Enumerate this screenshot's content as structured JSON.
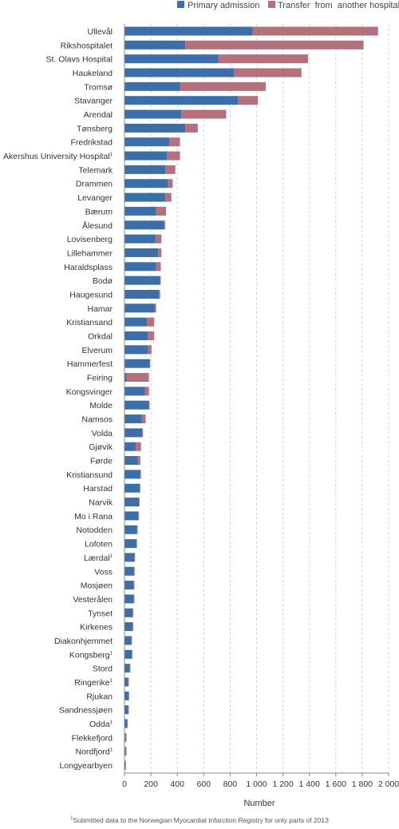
{
  "chart_data": {
    "type": "bar",
    "orientation": "horizontal",
    "stacked": true,
    "xlabel": "Number",
    "xlim": [
      0,
      2000
    ],
    "xticks": [
      0,
      200,
      400,
      600,
      800,
      1000,
      1200,
      1400,
      1600,
      1800,
      2000
    ],
    "xtick_labels": [
      "0",
      "200",
      "400",
      "600",
      "800",
      "1 000",
      "1 200",
      "1 400",
      "1 600",
      "1 800",
      "2 000"
    ],
    "grid": "vertical dashed",
    "legend_position": "top-right",
    "categories": [
      "Ullevål",
      "Rikshospitalet",
      "St. Olavs Hospital",
      "Haukeland",
      "Tromsø",
      "Stavanger",
      "Arendal",
      "Tønsberg",
      "Fredrikstad",
      "Akershus University Hospital",
      "Telemark",
      "Drammen",
      "Levanger",
      "Bærum",
      "Ålesund",
      "Lovisenberg",
      "Lillehammer",
      "Haraldsplass",
      "Bodø",
      "Haugesund",
      "Hamar",
      "Kristiansand",
      "Orkdal",
      "Elverum",
      "Hammerfest",
      "Feiring",
      "Kongsvinger",
      "Molde",
      "Namsos",
      "Volda",
      "Gjøvik",
      "Førde",
      "Kristiansund",
      "Harstad",
      "Narvik",
      "Mo i Rana",
      "Notodden",
      "Lofoten",
      "Lærdal",
      "Voss",
      "Mosjøen",
      "Vesterålen",
      "Tynset",
      "Kirkenes",
      "Diakonhjemmet",
      "Kongsberg",
      "Stord",
      "Ringerike",
      "Rjukan",
      "Sandnessjøen",
      "Odda",
      "Flekkefjord",
      "Nordfjord",
      "Longyearbyen"
    ],
    "footnote_marked": [
      "Akershus University Hospital",
      "Lærdal",
      "Kongsberg",
      "Ringerike",
      "Odda",
      "Nordfjord"
    ],
    "footnote_mark": "1",
    "series": [
      {
        "name": "Primary admission",
        "color": "#3c6ea9",
        "values": [
          970,
          460,
          710,
          830,
          420,
          860,
          430,
          460,
          340,
          320,
          310,
          330,
          310,
          240,
          300,
          235,
          255,
          240,
          270,
          260,
          230,
          170,
          175,
          180,
          190,
          15,
          155,
          185,
          130,
          135,
          85,
          100,
          120,
          115,
          110,
          105,
          95,
          90,
          75,
          72,
          70,
          70,
          62,
          62,
          52,
          55,
          40,
          28,
          30,
          28,
          20,
          10,
          10,
          6
        ]
      },
      {
        "name": "Transfer  from  another hospital",
        "color": "#b5717b",
        "values": [
          950,
          1350,
          680,
          510,
          650,
          150,
          340,
          95,
          80,
          100,
          75,
          35,
          45,
          75,
          8,
          45,
          25,
          35,
          5,
          10,
          10,
          55,
          50,
          25,
          5,
          170,
          30,
          5,
          30,
          5,
          40,
          20,
          5,
          5,
          5,
          5,
          5,
          5,
          5,
          5,
          5,
          5,
          5,
          5,
          5,
          5,
          5,
          5,
          5,
          5,
          5,
          5,
          5,
          5
        ]
      }
    ]
  },
  "footnote": {
    "mark": "1",
    "text": "Submitted data to the Norwegian Myocardial Infarction Registry for only parts of 2013"
  }
}
